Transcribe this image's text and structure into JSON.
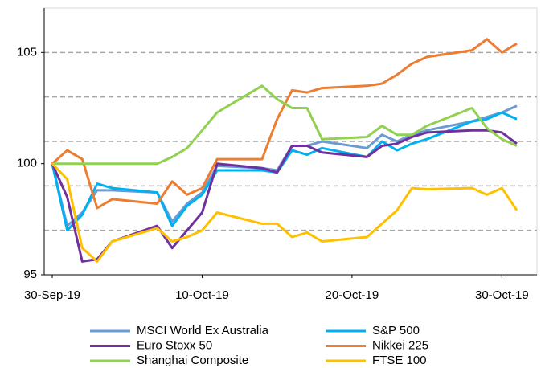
{
  "chart_data": {
    "type": "line",
    "x": [
      "2019-09-30",
      "2019-10-01",
      "2019-10-02",
      "2019-10-03",
      "2019-10-04",
      "2019-10-07",
      "2019-10-08",
      "2019-10-09",
      "2019-10-10",
      "2019-10-11",
      "2019-10-14",
      "2019-10-15",
      "2019-10-16",
      "2019-10-17",
      "2019-10-18",
      "2019-10-21",
      "2019-10-22",
      "2019-10-23",
      "2019-10-24",
      "2019-10-25",
      "2019-10-28",
      "2019-10-29",
      "2019-10-30",
      "2019-10-31"
    ],
    "series": [
      {
        "name": "MSCI World Ex Australia",
        "color": "#6a9bd2",
        "values": [
          100,
          97.2,
          97.8,
          98.8,
          98.8,
          98.7,
          97.4,
          98.2,
          98.7,
          99.9,
          99.8,
          99.7,
          100.8,
          100.8,
          101.0,
          100.7,
          101.3,
          101.0,
          101.3,
          101.5,
          101.9,
          102.1,
          102.3,
          102.6
        ]
      },
      {
        "name": "S&P 500",
        "color": "#00b0f0",
        "values": [
          100,
          97.0,
          97.7,
          99.1,
          98.9,
          98.7,
          97.2,
          98.1,
          98.6,
          99.7,
          99.7,
          99.6,
          100.6,
          100.4,
          100.7,
          100.3,
          101.0,
          100.6,
          100.9,
          101.1,
          101.9,
          102.0,
          102.3,
          102.0
        ]
      },
      {
        "name": "Euro Stoxx 50",
        "color": "#7030a0",
        "values": [
          100,
          98.5,
          95.6,
          95.7,
          96.5,
          97.2,
          96.2,
          97.0,
          97.8,
          100.0,
          99.8,
          99.6,
          100.8,
          100.8,
          100.5,
          100.3,
          100.8,
          100.9,
          101.2,
          101.4,
          101.5,
          101.5,
          101.4,
          100.9
        ]
      },
      {
        "name": "Nikkei 225",
        "color": "#ed7d31",
        "values": [
          100,
          100.6,
          100.2,
          98.0,
          98.4,
          98.2,
          99.2,
          98.6,
          98.9,
          100.2,
          100.2,
          102.0,
          103.3,
          103.2,
          103.4,
          103.5,
          103.6,
          104.0,
          104.5,
          104.8,
          105.1,
          105.6,
          105.0,
          105.4
        ]
      },
      {
        "name": "Shanghai Composite",
        "color": "#92d050",
        "values": [
          100,
          100,
          100,
          100,
          100,
          100,
          100.3,
          100.7,
          101.5,
          102.3,
          103.5,
          102.9,
          102.5,
          102.5,
          101.1,
          101.2,
          101.7,
          101.3,
          101.3,
          101.7,
          102.5,
          101.6,
          101.1,
          100.8
        ]
      },
      {
        "name": "FTSE 100",
        "color": "#ffc000",
        "values": [
          100,
          99.3,
          96.2,
          95.6,
          96.5,
          97.1,
          96.5,
          96.7,
          97.0,
          97.8,
          97.3,
          97.3,
          96.7,
          96.9,
          96.5,
          96.7,
          97.3,
          97.9,
          98.9,
          98.85,
          98.9,
          98.6,
          98.9,
          97.9
        ]
      }
    ],
    "xlim": [
      "2019-09-30",
      "2019-10-31"
    ],
    "xticks": [
      {
        "value": "2019-09-30",
        "label": "30-Sep-19"
      },
      {
        "value": "2019-10-10",
        "label": "10-Oct-19"
      },
      {
        "value": "2019-10-20",
        "label": "20-Oct-19"
      },
      {
        "value": "2019-10-30",
        "label": "30-Oct-19"
      }
    ],
    "ylim": [
      95,
      107
    ],
    "yticks": [
      95,
      100,
      105
    ],
    "grid_lines": [
      97,
      99,
      101,
      103,
      105
    ],
    "legend": "bottom"
  }
}
